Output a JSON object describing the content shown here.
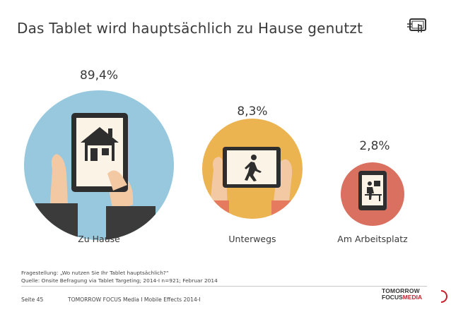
{
  "header": {
    "title": "Das Tablet wird hauptsächlich zu Hause genutzt"
  },
  "chart_data": {
    "type": "bubble",
    "title": "Das Tablet wird hauptsächlich zu Hause genutzt",
    "categories": [
      "Zu Hause",
      "Unterwegs",
      "Am Arbeitsplatz"
    ],
    "values": [
      89.4,
      8.3,
      2.8
    ],
    "value_labels": [
      "89,4%",
      "8,3%",
      "2,8%"
    ],
    "unit": "%",
    "colors": [
      "#97c8dd",
      "#ecb351",
      "#d97060"
    ],
    "icons": [
      "house-icon",
      "walking-person-icon",
      "desk-worker-icon"
    ]
  },
  "notes": {
    "question": "Fragestellung: „Wo nutzen Sie Ihr Tablet hauptsächlich?“",
    "source": "Quelle: Onsite Befragung via Tablet Targeting; 2014-I n=921; Februar 2014"
  },
  "footer": {
    "page": "Seite 45",
    "text": "TOMORROW FOCUS Media  I  Mobile Effects 2014-I",
    "logo_line1": "TOMORROW",
    "logo_focus": "FOCUS",
    "logo_media": "MEDIA"
  }
}
